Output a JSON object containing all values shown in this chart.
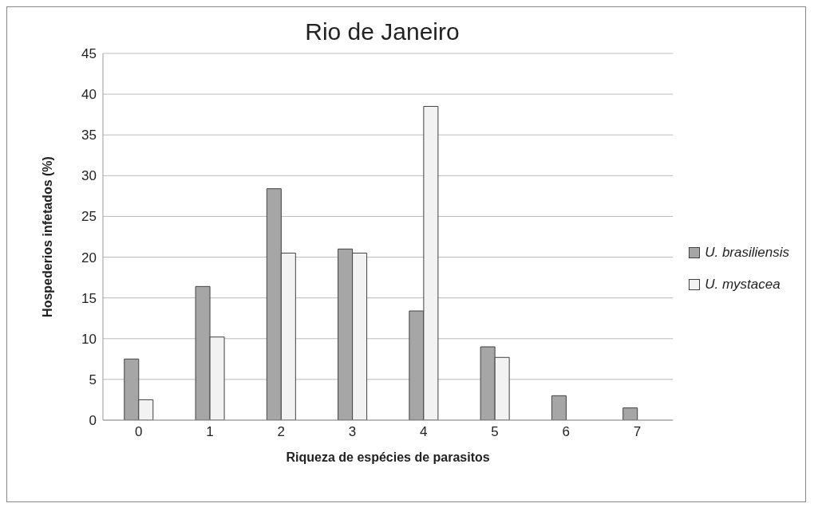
{
  "chart_data": {
    "type": "bar",
    "title": "Rio de Janeiro",
    "xlabel": "Riqueza de espécies de parasitos",
    "ylabel": "Hospederios infetados (%)",
    "categories": [
      "0",
      "1",
      "2",
      "3",
      "4",
      "5",
      "6",
      "7"
    ],
    "series": [
      {
        "name": "U. brasiliensis",
        "color": "#a6a6a6",
        "values": [
          7.5,
          16.4,
          28.4,
          21.0,
          13.4,
          9.0,
          3.0,
          1.5
        ]
      },
      {
        "name": "U. mystacea",
        "color": "#f2f2f2",
        "values": [
          2.5,
          10.2,
          20.5,
          20.5,
          38.5,
          7.7,
          null,
          null
        ]
      }
    ],
    "ylim": [
      0,
      45
    ],
    "yticks": [
      0,
      5,
      10,
      15,
      20,
      25,
      30,
      35,
      40,
      45
    ],
    "grid": "y",
    "legend": "right"
  }
}
